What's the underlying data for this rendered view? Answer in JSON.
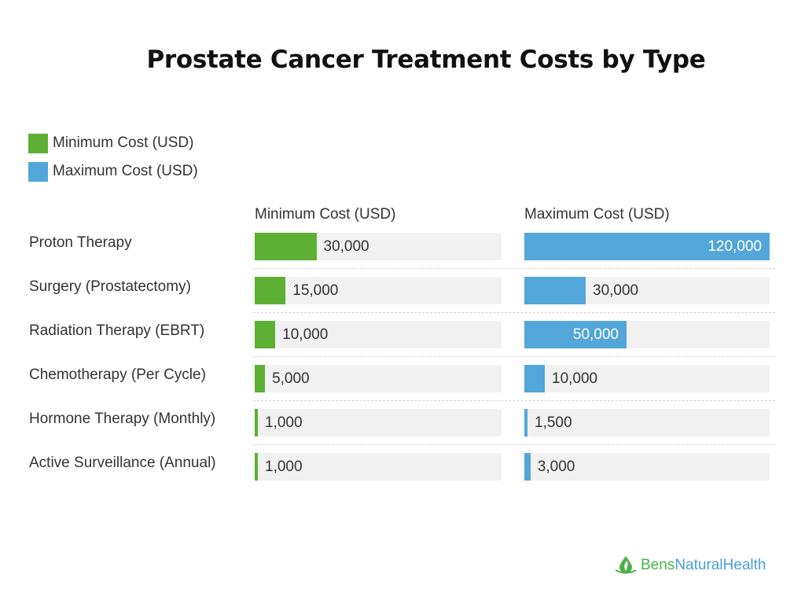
{
  "chart_data": {
    "type": "bar",
    "title": "Prostate Cancer Treatment Costs by Type",
    "categories": [
      "Proton Therapy",
      "Surgery (Prostatectomy)",
      "Radiation Therapy (EBRT)",
      "Chemotherapy (Per Cycle)",
      "Hormone Therapy (Monthly)",
      "Active Surveillance (Annual)"
    ],
    "series": [
      {
        "name": "Minimum Cost (USD)",
        "color": "#5db033",
        "values": [
          30000,
          15000,
          10000,
          5000,
          1000,
          1000
        ],
        "labels": [
          "30,000",
          "15,000",
          "10,000",
          "5,000",
          "1,000",
          "1,000"
        ]
      },
      {
        "name": "Maximum Cost (USD)",
        "color": "#52a6d9",
        "values": [
          120000,
          30000,
          50000,
          10000,
          1500,
          3000
        ],
        "labels": [
          "120,000",
          "30,000",
          "50,000",
          "10,000",
          "1,500",
          "3,000"
        ]
      }
    ],
    "legend_position": "top-left",
    "xlim": [
      0,
      120000
    ]
  },
  "logo": {
    "part1": "Bens",
    "part2": "NaturalHealth"
  }
}
